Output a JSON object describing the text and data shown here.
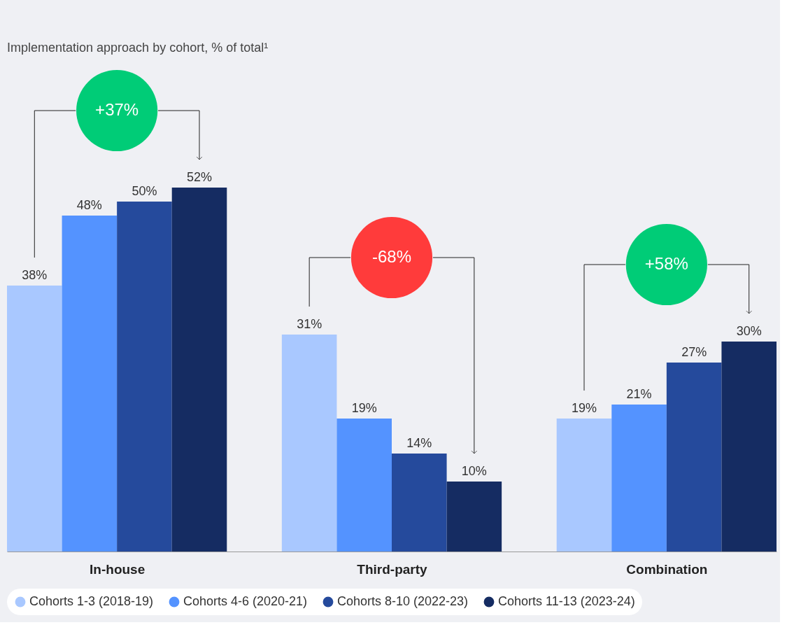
{
  "chart_data": {
    "type": "bar",
    "title": "Implementation approach by cohort, % of total¹",
    "categories": [
      "In-house",
      "Third-party",
      "Combination"
    ],
    "series": [
      {
        "name": "Cohorts 1-3 (2018-19)",
        "color": "#a9c8ff",
        "values": [
          38,
          31,
          19
        ],
        "value_labels": [
          "38%",
          "31%",
          "19%"
        ]
      },
      {
        "name": "Cohorts 4-6 (2020-21)",
        "color": "#5493ff",
        "values": [
          48,
          19,
          21
        ],
        "value_labels": [
          "48%",
          "19%",
          "21%"
        ]
      },
      {
        "name": "Cohorts 8-10 (2022-23)",
        "color": "#254a9c",
        "values": [
          50,
          14,
          27
        ],
        "value_labels": [
          "50%",
          "14%",
          "27%"
        ]
      },
      {
        "name": "Cohorts 11-13 (2023-24)",
        "color": "#152c62",
        "values": [
          52,
          10,
          30
        ],
        "value_labels": [
          "52%",
          "10%",
          "30%"
        ]
      }
    ],
    "annotations": [
      "+37%",
      "-68%",
      "+58%"
    ],
    "legend": "bottom",
    "grid": false
  }
}
